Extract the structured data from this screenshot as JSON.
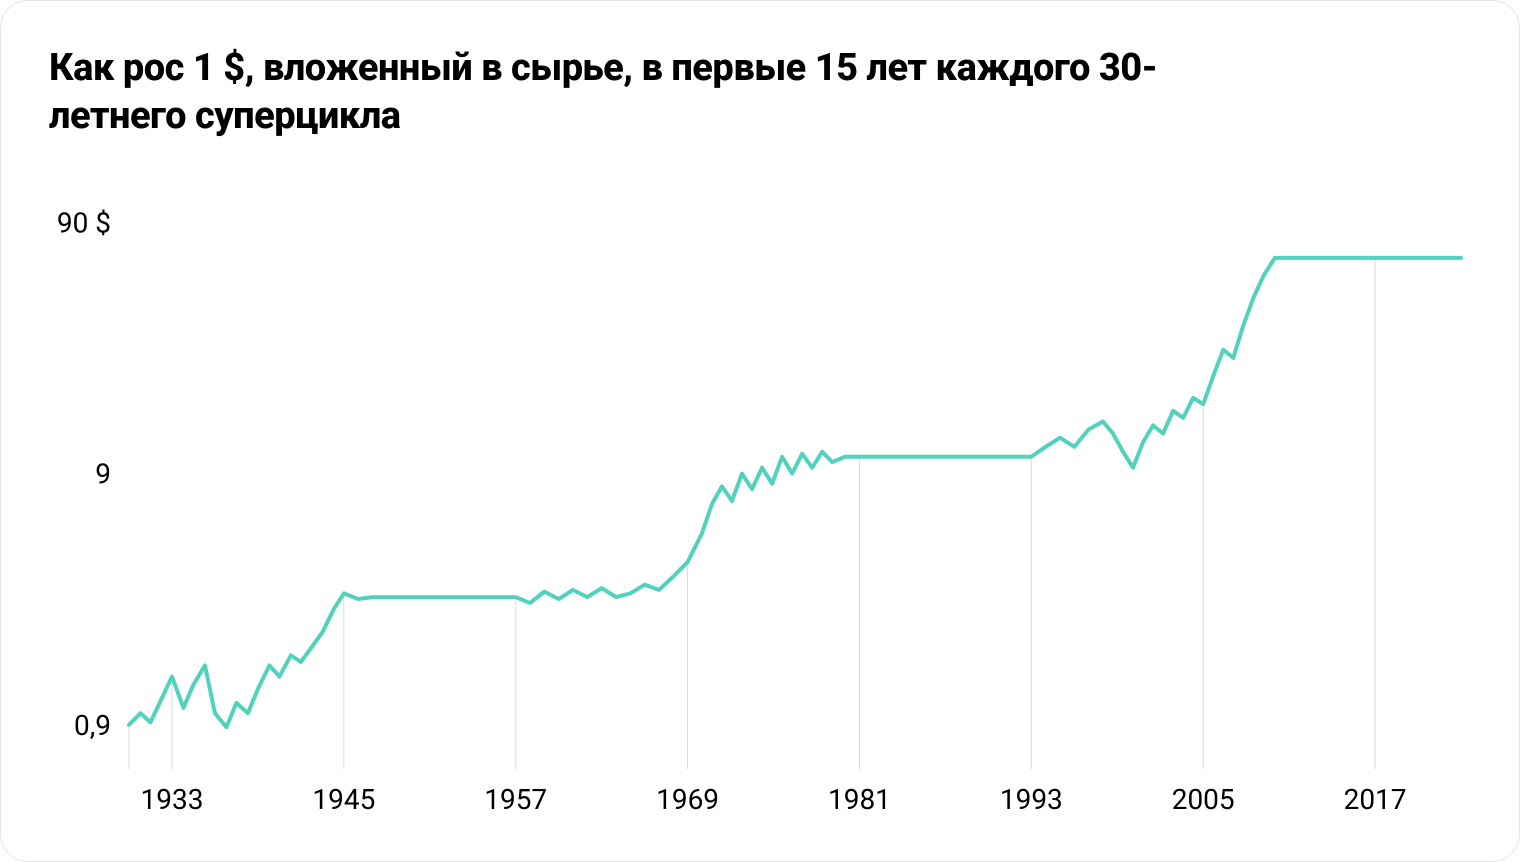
{
  "chart": {
    "type": "line",
    "title": "Как рос 1 $, вложенный в сырье, в первые 15 лет каждого 30-летнего суперцикла",
    "title_fontsize": 38,
    "title_fontweight": 800,
    "background_color": "#ffffff",
    "border_color": "#e5e5e5",
    "border_radius": 28,
    "line_color": "#52d1bc",
    "line_width": 4,
    "grid_color": "#d9d9d9",
    "axis_text_color": "#000000",
    "axis_fontsize": 28,
    "yscale": "log",
    "ylim": [
      0.6,
      120
    ],
    "yticks": [
      {
        "v": 0.9,
        "label": "0,9"
      },
      {
        "v": 9,
        "label": "9"
      },
      {
        "v": 90,
        "label": "90 $"
      }
    ],
    "xlim": [
      1930,
      2023
    ],
    "xticks": [
      1933,
      1945,
      1957,
      1969,
      1981,
      1993,
      2005,
      2017
    ],
    "series": [
      {
        "name": "dollar_growth",
        "points": [
          [
            1930.0,
            0.9
          ],
          [
            1930.8,
            1.0
          ],
          [
            1931.5,
            0.92
          ],
          [
            1932.3,
            1.15
          ],
          [
            1933.0,
            1.4
          ],
          [
            1933.8,
            1.05
          ],
          [
            1934.5,
            1.3
          ],
          [
            1935.3,
            1.55
          ],
          [
            1936.0,
            1.0
          ],
          [
            1936.8,
            0.88
          ],
          [
            1937.5,
            1.1
          ],
          [
            1938.3,
            1.0
          ],
          [
            1939.0,
            1.25
          ],
          [
            1939.8,
            1.55
          ],
          [
            1940.5,
            1.4
          ],
          [
            1941.3,
            1.7
          ],
          [
            1942.0,
            1.6
          ],
          [
            1942.8,
            1.85
          ],
          [
            1943.5,
            2.1
          ],
          [
            1944.3,
            2.6
          ],
          [
            1945.0,
            3.0
          ],
          [
            1946.0,
            2.85
          ],
          [
            1947.0,
            2.9
          ],
          [
            1957.0,
            2.9
          ],
          [
            1958.0,
            2.75
          ],
          [
            1959.0,
            3.05
          ],
          [
            1960.0,
            2.85
          ],
          [
            1961.0,
            3.1
          ],
          [
            1962.0,
            2.9
          ],
          [
            1963.0,
            3.15
          ],
          [
            1964.0,
            2.9
          ],
          [
            1965.0,
            3.0
          ],
          [
            1966.0,
            3.25
          ],
          [
            1967.0,
            3.1
          ],
          [
            1968.0,
            3.5
          ],
          [
            1969.0,
            4.0
          ],
          [
            1970.0,
            5.2
          ],
          [
            1970.7,
            6.8
          ],
          [
            1971.4,
            8.0
          ],
          [
            1972.1,
            7.0
          ],
          [
            1972.8,
            9.0
          ],
          [
            1973.5,
            7.8
          ],
          [
            1974.2,
            9.5
          ],
          [
            1974.9,
            8.2
          ],
          [
            1975.6,
            10.5
          ],
          [
            1976.3,
            9.0
          ],
          [
            1977.0,
            10.8
          ],
          [
            1977.7,
            9.5
          ],
          [
            1978.4,
            11.0
          ],
          [
            1979.1,
            10.0
          ],
          [
            1980.0,
            10.5
          ],
          [
            1981.0,
            10.5
          ],
          [
            1993.0,
            10.5
          ],
          [
            1994.0,
            11.5
          ],
          [
            1995.0,
            12.5
          ],
          [
            1996.0,
            11.5
          ],
          [
            1997.0,
            13.5
          ],
          [
            1998.0,
            14.5
          ],
          [
            1998.7,
            13.0
          ],
          [
            1999.4,
            11.0
          ],
          [
            2000.1,
            9.5
          ],
          [
            2000.8,
            12.0
          ],
          [
            2001.5,
            14.0
          ],
          [
            2002.2,
            13.0
          ],
          [
            2002.9,
            16.0
          ],
          [
            2003.6,
            15.0
          ],
          [
            2004.3,
            18.0
          ],
          [
            2005.0,
            17.0
          ],
          [
            2005.7,
            22.0
          ],
          [
            2006.4,
            28.0
          ],
          [
            2007.1,
            26.0
          ],
          [
            2007.8,
            35.0
          ],
          [
            2008.5,
            45.0
          ],
          [
            2009.2,
            55.0
          ],
          [
            2010.0,
            65.0
          ],
          [
            2011.0,
            65.0
          ],
          [
            2023.0,
            65.0
          ]
        ]
      }
    ]
  }
}
